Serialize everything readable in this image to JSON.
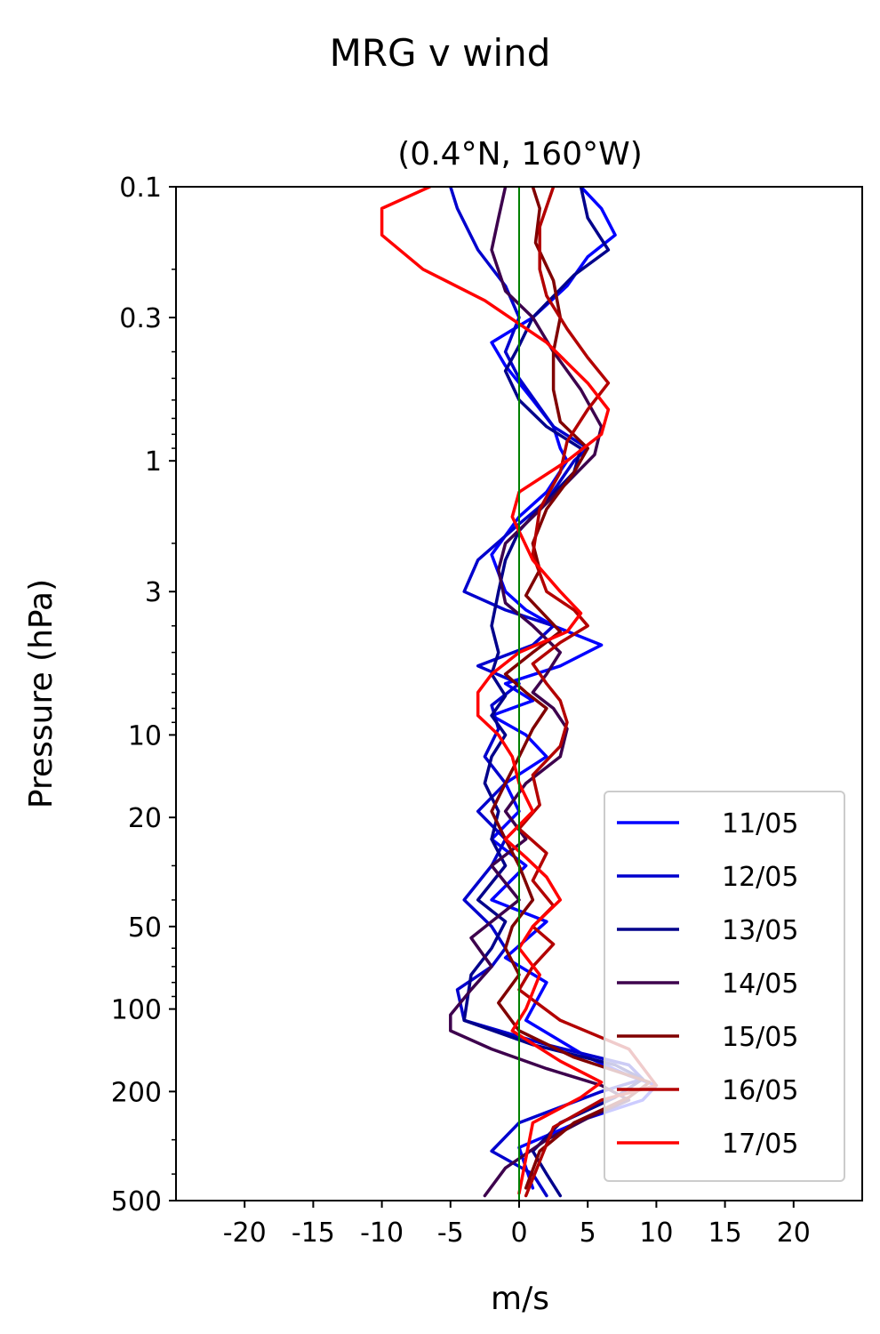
{
  "chart_data": {
    "type": "line",
    "suptitle": "MRG v wind",
    "title": "(0.4°N, 160°W)",
    "xlabel": "m/s",
    "ylabel": "Pressure (hPa)",
    "xlim": [
      -25,
      25
    ],
    "ylim": [
      500,
      0.1
    ],
    "yscale": "log",
    "xticks": [
      -20,
      -15,
      -10,
      -5,
      0,
      5,
      10,
      15,
      20
    ],
    "xtick_labels": [
      "-20",
      "-15",
      "-10",
      "-5",
      "0",
      "5",
      "10",
      "15",
      "20"
    ],
    "yticks": [
      0.1,
      0.3,
      1,
      3,
      10,
      20,
      50,
      100,
      200,
      500
    ],
    "ytick_labels": [
      "0.1",
      "0.3",
      "1",
      "3",
      "10",
      "20",
      "50",
      "100",
      "200",
      "500"
    ],
    "reference_line": {
      "x": 0,
      "color": "#008000"
    },
    "legend": "lower right",
    "series": [
      {
        "name": "11/05",
        "color": "#0000ff",
        "x": [
          4.5,
          6,
          7,
          5,
          3.5,
          1,
          -2,
          -1,
          1,
          2.5,
          3,
          3.5,
          2,
          0,
          -2,
          -1,
          0.5,
          2.5,
          6,
          3,
          -1,
          1,
          -2,
          0.5,
          2,
          -1,
          0,
          -2,
          0.5,
          -2,
          2,
          -1,
          2,
          0.5,
          5,
          8,
          10,
          9,
          5,
          0,
          1
        ],
        "y": [
          0.1,
          0.12,
          0.15,
          0.18,
          0.23,
          0.3,
          0.37,
          0.45,
          0.6,
          0.75,
          0.9,
          1.0,
          1.3,
          1.6,
          2.2,
          3.0,
          3.5,
          4.0,
          4.7,
          5.6,
          6.5,
          7.5,
          8.5,
          10,
          12,
          15,
          19,
          24,
          30,
          40,
          48,
          65,
          80,
          110,
          150,
          175,
          190,
          215,
          250,
          320,
          450
        ]
      },
      {
        "name": "12/05",
        "color": "#0000cd",
        "x": [
          -5,
          -4.5,
          -3,
          -1,
          0,
          -1,
          0,
          2.5,
          5,
          4,
          2,
          0,
          -3,
          -4,
          -1,
          2.5,
          1,
          -3,
          0,
          -2,
          -1.5,
          -2.5,
          -1,
          -3,
          -1,
          -2,
          -4,
          -2,
          -1,
          -2,
          -4.5,
          -4,
          2,
          8,
          9,
          6,
          0,
          -2,
          1,
          2
        ],
        "y": [
          0.1,
          0.12,
          0.17,
          0.23,
          0.3,
          0.4,
          0.5,
          0.75,
          0.9,
          1.0,
          1.4,
          1.7,
          2.3,
          3.0,
          3.5,
          4.0,
          4.7,
          5.6,
          6.5,
          7.8,
          9.5,
          12,
          15,
          19,
          24,
          30,
          40,
          50,
          60,
          70,
          85,
          110,
          135,
          160,
          180,
          200,
          260,
          330,
          400,
          480
        ]
      },
      {
        "name": "13/05",
        "color": "#00008b",
        "x": [
          4.5,
          5,
          6.5,
          4,
          1,
          0,
          -1,
          0,
          2,
          4.5,
          4,
          2,
          0,
          -1,
          -1.5,
          -2,
          -1.5,
          -2,
          -1,
          -2,
          -1,
          -2,
          -2.5,
          -1.5,
          -2,
          -1,
          -3,
          -1,
          -2,
          -3.5,
          -4,
          1,
          7,
          9,
          7,
          3,
          1,
          2,
          3
        ],
        "y": [
          0.1,
          0.13,
          0.17,
          0.21,
          0.3,
          0.38,
          0.47,
          0.6,
          0.75,
          0.9,
          1.1,
          1.4,
          1.8,
          2.3,
          3.0,
          4.0,
          5.0,
          6.0,
          7.2,
          8.5,
          10,
          12,
          15,
          19,
          24,
          30,
          40,
          48,
          60,
          75,
          110,
          135,
          160,
          180,
          210,
          260,
          330,
          400,
          480
        ]
      },
      {
        "name": "14/05",
        "color": "#3d004d",
        "x": [
          -1,
          -1.5,
          -2,
          -1,
          1,
          2.5,
          4.5,
          6,
          5.5,
          3.5,
          1,
          -1,
          -1.5,
          -1,
          1,
          3,
          2,
          1,
          2.5,
          3.5,
          3,
          0.5,
          -1,
          0.5,
          -2,
          0,
          -2,
          -3.5,
          -2,
          -3.5,
          -5,
          -5,
          -2,
          2,
          6,
          8,
          5,
          2,
          -1,
          -2.5
        ],
        "y": [
          0.1,
          0.13,
          0.17,
          0.24,
          0.3,
          0.4,
          0.55,
          0.75,
          0.95,
          1.2,
          1.6,
          2.0,
          2.5,
          3.3,
          4.0,
          5.0,
          6.0,
          7.0,
          8.0,
          9.5,
          12,
          15,
          19,
          24,
          30,
          40,
          48,
          55,
          70,
          85,
          105,
          120,
          140,
          165,
          190,
          215,
          250,
          300,
          380,
          480
        ]
      },
      {
        "name": "15/05",
        "color": "#800000",
        "x": [
          1,
          1.5,
          1.2,
          2.5,
          3,
          2.5,
          2.5,
          3,
          5,
          4,
          2,
          1,
          1.5,
          0.5,
          1.5,
          3,
          1,
          -1,
          0.5,
          2,
          1,
          0,
          -1,
          -2,
          -1,
          0,
          1,
          -0.5,
          -1,
          0,
          -1.5,
          0,
          4,
          9.5,
          8,
          4,
          1.5,
          0.5
        ],
        "y": [
          0.1,
          0.12,
          0.16,
          0.22,
          0.3,
          0.4,
          0.55,
          0.72,
          0.9,
          1.1,
          1.5,
          2.0,
          2.5,
          3.1,
          3.5,
          4.2,
          5.0,
          6.0,
          7.0,
          8.0,
          9.5,
          12,
          15,
          19,
          24,
          30,
          40,
          50,
          60,
          75,
          95,
          120,
          150,
          185,
          210,
          260,
          330,
          450
        ]
      },
      {
        "name": "16/05",
        "color": "#b30000",
        "x": [
          2.5,
          1.5,
          1.5,
          2,
          3.5,
          5,
          6.5,
          5,
          3.5,
          3,
          1.5,
          1,
          2,
          4,
          5,
          3,
          1,
          2,
          3,
          3.5,
          3,
          1,
          1.5,
          0,
          2,
          1,
          2.5,
          1,
          2.5,
          1,
          0,
          3,
          8,
          10,
          6,
          2.5,
          0.5
        ],
        "y": [
          0.1,
          0.14,
          0.2,
          0.25,
          0.33,
          0.42,
          0.52,
          0.65,
          0.85,
          1.1,
          1.5,
          2.2,
          3.0,
          3.5,
          4.0,
          4.6,
          5.5,
          6.5,
          7.5,
          9.0,
          11,
          14,
          18,
          22,
          27,
          34,
          42,
          50,
          58,
          70,
          85,
          110,
          140,
          190,
          215,
          270,
          480
        ]
      },
      {
        "name": "17/05",
        "color": "#ff0000",
        "x": [
          -6.5,
          -10,
          -10,
          -7,
          -2.5,
          2,
          5,
          6.5,
          6,
          3.5,
          0,
          -0.5,
          1,
          3,
          4.5,
          3.5,
          0,
          -2,
          -3,
          -3,
          -1.5,
          -0.5,
          0,
          1,
          -1,
          0.5,
          2,
          3,
          1,
          0,
          1.5,
          0.5,
          -0.5,
          3,
          6,
          4.5,
          1,
          0
        ],
        "y": [
          0.1,
          0.12,
          0.15,
          0.2,
          0.26,
          0.37,
          0.52,
          0.65,
          0.8,
          1.0,
          1.3,
          1.6,
          2.3,
          3.0,
          3.6,
          4.2,
          5.0,
          6.0,
          7.0,
          8.5,
          10,
          12,
          15,
          19,
          24,
          28,
          33,
          40,
          50,
          60,
          75,
          100,
          120,
          155,
          185,
          210,
          260,
          470
        ]
      }
    ]
  }
}
